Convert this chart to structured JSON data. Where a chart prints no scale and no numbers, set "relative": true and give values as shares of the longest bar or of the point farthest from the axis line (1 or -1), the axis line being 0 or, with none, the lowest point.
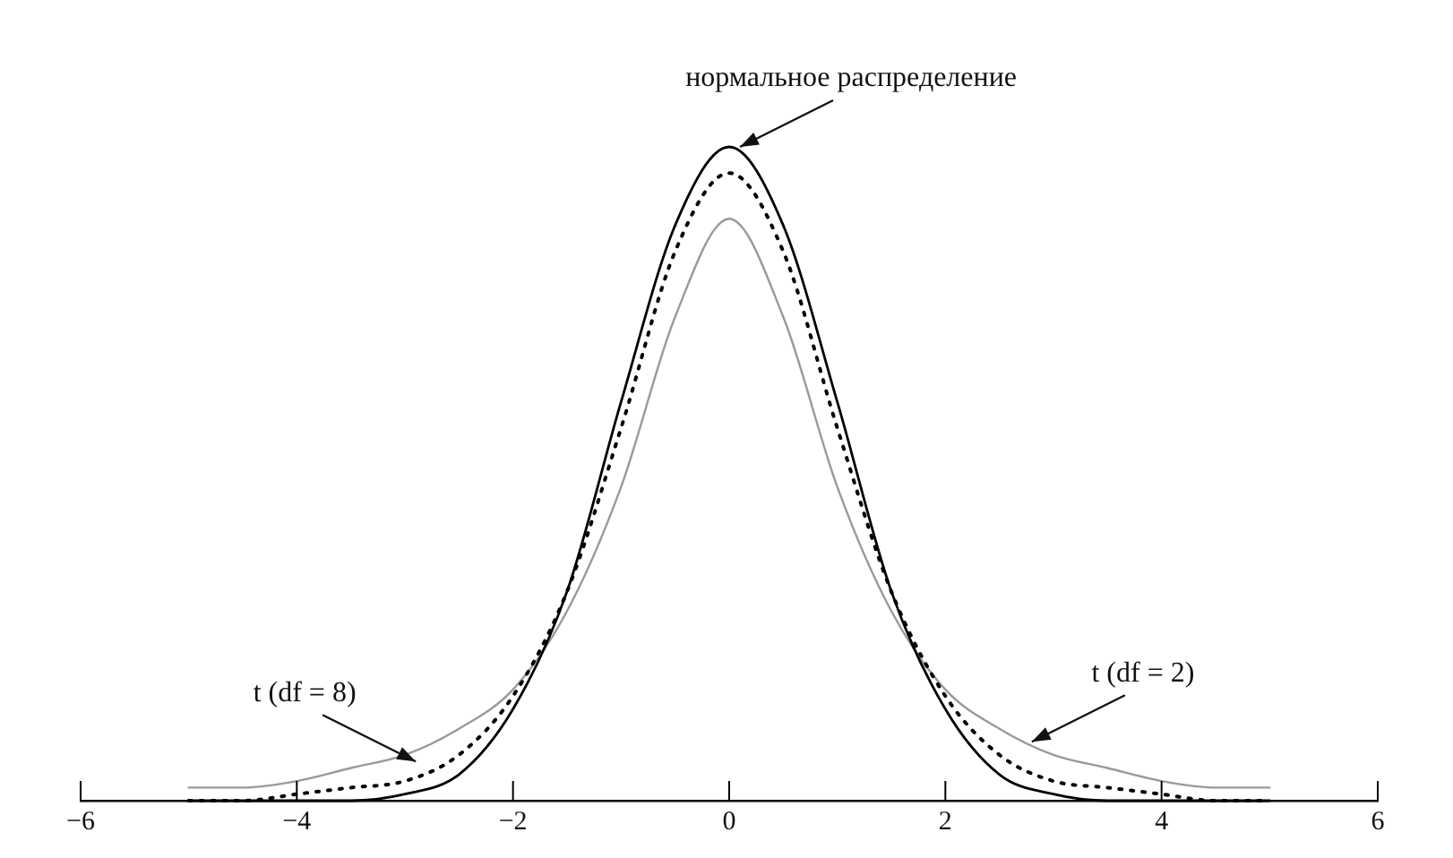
{
  "chart_data": {
    "type": "line",
    "relative": true,
    "legend": false,
    "grid": false,
    "marker": "none",
    "x": [
      -5,
      -4.5,
      -4,
      -3.5,
      -3,
      -2.5,
      -2,
      -1.5,
      -1,
      -0.5,
      0,
      0.5,
      1,
      1.5,
      2,
      2.5,
      3,
      3.5,
      4,
      4.5,
      5
    ],
    "xlim": [
      -6,
      6
    ],
    "xticks": [
      {
        "value": -6,
        "label": "−6"
      },
      {
        "value": -4,
        "label": "−4"
      },
      {
        "value": -2,
        "label": "−2"
      },
      0,
      2,
      4,
      6
    ],
    "series": [
      {
        "color": "#000000",
        "line_style": "solid",
        "values": [
          0,
          0,
          0,
          0,
          0.01,
          0.04,
          0.14,
          0.32,
          0.61,
          0.88,
          1,
          0.88,
          0.61,
          0.32,
          0.14,
          0.04,
          0.01,
          0,
          0,
          0,
          0
        ]
      },
      {
        "color": "#000000",
        "line_style": "dotted",
        "values": [
          0,
          0,
          0.01,
          0.02,
          0.03,
          0.07,
          0.16,
          0.32,
          0.57,
          0.84,
          0.96,
          0.84,
          0.57,
          0.32,
          0.16,
          0.07,
          0.03,
          0.02,
          0.01,
          0,
          0
        ]
      },
      {
        "color": "#999999",
        "line_style": "solid",
        "values": [
          0.02,
          0.02,
          0.03,
          0.05,
          0.07,
          0.11,
          0.17,
          0.29,
          0.48,
          0.74,
          0.89,
          0.74,
          0.48,
          0.29,
          0.17,
          0.11,
          0.07,
          0.05,
          0.03,
          0.02,
          0.02
        ]
      }
    ],
    "annotations": [
      {
        "text": "нормальное распределение",
        "x": 0.1,
        "y": 1
      },
      {
        "text": "t (df = 8)",
        "x": -2.9,
        "y": 0.06
      },
      {
        "text": "t (df = 2)",
        "x": 2.8,
        "y": 0.09
      }
    ]
  }
}
